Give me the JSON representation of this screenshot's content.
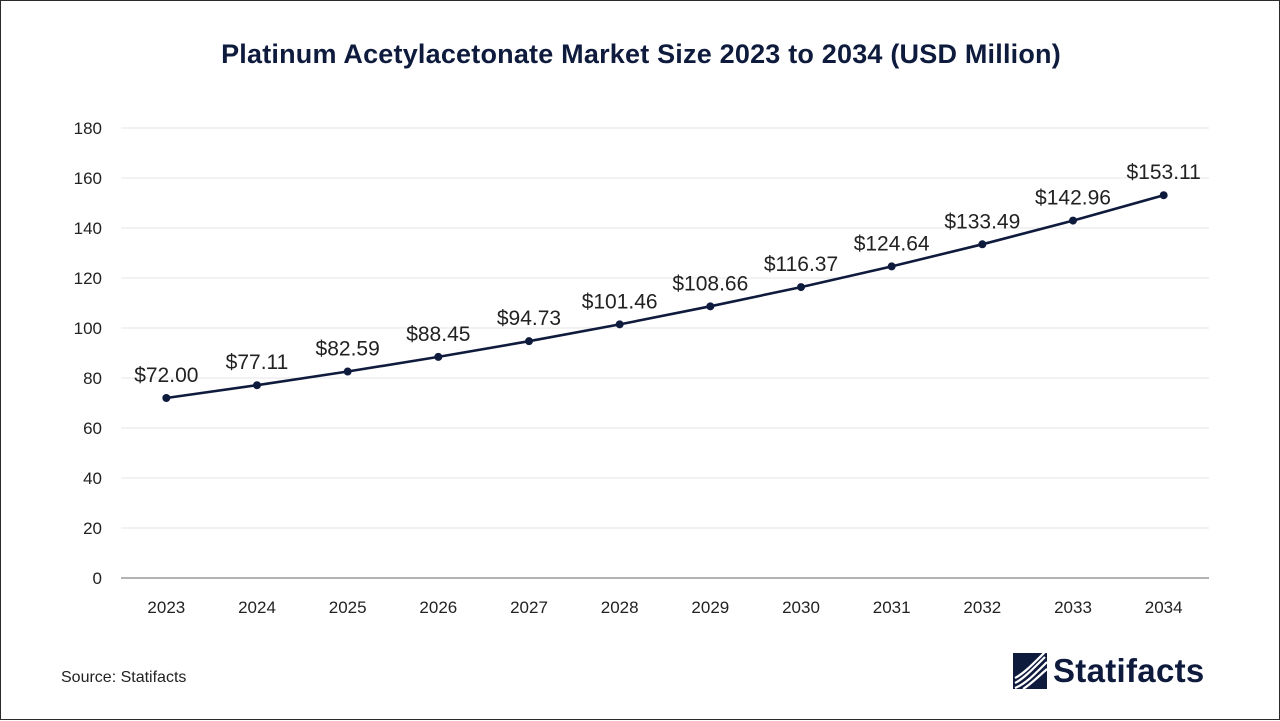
{
  "chart_data": {
    "type": "line",
    "title": "Platinum Acetylacetonate Market Size 2023 to 2034 (USD Million)",
    "categories": [
      "2023",
      "2024",
      "2025",
      "2026",
      "2027",
      "2028",
      "2029",
      "2030",
      "2031",
      "2032",
      "2033",
      "2034"
    ],
    "series": [
      {
        "values": [
          72.0,
          77.11,
          82.59,
          88.45,
          94.73,
          101.46,
          108.66,
          116.37,
          124.64,
          133.49,
          142.96,
          153.11
        ],
        "labels": [
          "$72.00",
          "$77.11",
          "$82.59",
          "$88.45",
          "$94.73",
          "$101.46",
          "$108.66",
          "$116.37",
          "$124.64",
          "$133.49",
          "$142.96",
          "$153.11"
        ],
        "color": "#0f1b3d"
      }
    ],
    "ylim": [
      0,
      180
    ],
    "yticks": [
      0,
      20,
      40,
      60,
      80,
      100,
      120,
      140,
      160,
      180
    ],
    "grid": true,
    "xlabel": "",
    "ylabel": ""
  },
  "footer": {
    "source": "Source: Statifacts",
    "brand": "Statifacts"
  },
  "colors": {
    "line": "#0f1b3d",
    "grid": "#e6e6e6",
    "axis": "#9a9a9a",
    "text": "#222222"
  }
}
